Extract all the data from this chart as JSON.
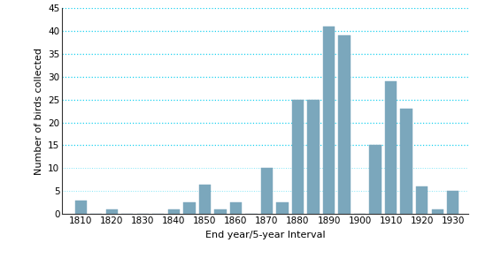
{
  "years": [
    1810,
    1815,
    1820,
    1825,
    1830,
    1835,
    1840,
    1845,
    1850,
    1855,
    1860,
    1865,
    1870,
    1875,
    1880,
    1885,
    1890,
    1895,
    1900,
    1905,
    1910,
    1915,
    1920,
    1925,
    1930
  ],
  "values": [
    3,
    0,
    1,
    0,
    0,
    0,
    1,
    2.5,
    6.5,
    1,
    2.5,
    0,
    10,
    2.5,
    25,
    25,
    41,
    39,
    0,
    15,
    29,
    23,
    6,
    1,
    5
  ],
  "bar_color": "#7ba7bc",
  "xlabel": "End year/5-year Interval",
  "ylabel": "Number of birds collected",
  "ylim": [
    0,
    45
  ],
  "yticks": [
    0,
    5,
    10,
    15,
    20,
    25,
    30,
    35,
    40,
    45
  ],
  "xtick_labels": [
    "1810",
    "1820",
    "1830",
    "1840",
    "1850",
    "1860",
    "1870",
    "1880",
    "1890",
    "1900",
    "1910",
    "1920",
    "1930"
  ],
  "xtick_positions": [
    1810,
    1820,
    1830,
    1840,
    1850,
    1860,
    1870,
    1880,
    1890,
    1900,
    1910,
    1920,
    1930
  ],
  "grid_color": "#00ccee",
  "background_color": "#ffffff",
  "bar_width": 3.8,
  "xlabel_fontsize": 8,
  "ylabel_fontsize": 8,
  "tick_fontsize": 7.5,
  "xlim_left": 1804,
  "xlim_right": 1935
}
